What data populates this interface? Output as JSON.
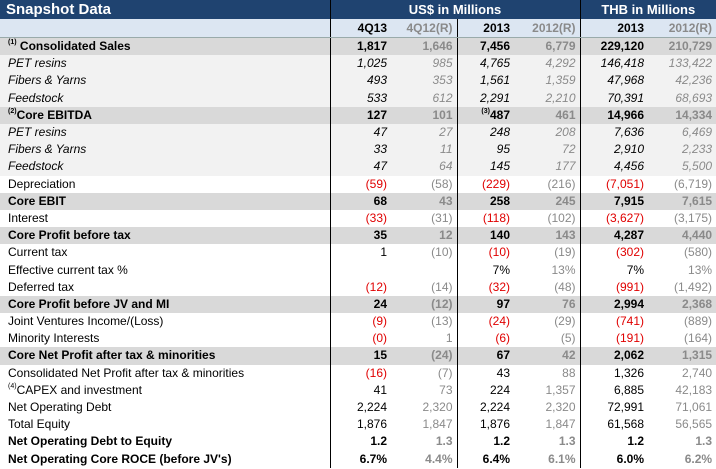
{
  "title": "Snapshot Data",
  "groups": {
    "usd": "US$ in Millions",
    "thb": "THB in Millions"
  },
  "columns": [
    "4Q13",
    "4Q12(R)",
    "2013",
    "2012(R)",
    "2013",
    "2012(R)"
  ],
  "rows": [
    {
      "sup": "(1)",
      "label": " Consolidated Sales",
      "style": "shade",
      "cells": [
        {
          "v": "1,817"
        },
        {
          "v": "1,646"
        },
        {
          "v": "7,456"
        },
        {
          "v": "6,779"
        },
        {
          "v": "229,120"
        },
        {
          "v": "210,729"
        }
      ]
    },
    {
      "label": "PET resins",
      "style": "sub",
      "cells": [
        {
          "v": "1,025"
        },
        {
          "v": "985"
        },
        {
          "v": "4,765"
        },
        {
          "v": "4,292"
        },
        {
          "v": "146,418"
        },
        {
          "v": "133,422"
        }
      ]
    },
    {
      "label": "Fibers & Yarns",
      "style": "sub",
      "cells": [
        {
          "v": "493"
        },
        {
          "v": "353"
        },
        {
          "v": "1,561"
        },
        {
          "v": "1,359"
        },
        {
          "v": "47,968"
        },
        {
          "v": "42,236"
        }
      ]
    },
    {
      "label": "Feedstock",
      "style": "sub",
      "cells": [
        {
          "v": "533"
        },
        {
          "v": "612"
        },
        {
          "v": "2,291"
        },
        {
          "v": "2,210"
        },
        {
          "v": "70,391"
        },
        {
          "v": "68,693"
        }
      ]
    },
    {
      "sup": "(2)",
      "label": "Core EBITDA",
      "style": "shade",
      "cells": [
        {
          "v": "127"
        },
        {
          "v": "101"
        },
        {
          "sup": "(3)",
          "v": "487"
        },
        {
          "v": "461"
        },
        {
          "v": "14,966"
        },
        {
          "v": "14,334"
        }
      ]
    },
    {
      "label": "PET resins",
      "style": "sub",
      "cells": [
        {
          "v": "47"
        },
        {
          "v": "27"
        },
        {
          "v": "248"
        },
        {
          "v": "208"
        },
        {
          "v": "7,636"
        },
        {
          "v": "6,469"
        }
      ]
    },
    {
      "label": "Fibers & Yarns",
      "style": "sub",
      "cells": [
        {
          "v": "33"
        },
        {
          "v": "11"
        },
        {
          "v": "95"
        },
        {
          "v": "72"
        },
        {
          "v": "2,910"
        },
        {
          "v": "2,233"
        }
      ]
    },
    {
      "label": "Feedstock",
      "style": "sub",
      "cells": [
        {
          "v": "47"
        },
        {
          "v": "64"
        },
        {
          "v": "145"
        },
        {
          "v": "177"
        },
        {
          "v": "4,456"
        },
        {
          "v": "5,500"
        }
      ]
    },
    {
      "label": "Depreciation",
      "style": "plain",
      "cells": [
        {
          "v": "(59)"
        },
        {
          "v": "(58)"
        },
        {
          "v": "(229)"
        },
        {
          "v": "(216)"
        },
        {
          "v": "(7,051)"
        },
        {
          "v": "(6,719)"
        }
      ]
    },
    {
      "label": "Core EBIT",
      "style": "shade",
      "cells": [
        {
          "v": "68"
        },
        {
          "v": "43"
        },
        {
          "v": "258"
        },
        {
          "v": "245"
        },
        {
          "v": "7,915"
        },
        {
          "v": "7,615"
        }
      ]
    },
    {
      "label": "Interest",
      "style": "plain",
      "cells": [
        {
          "v": "(33)"
        },
        {
          "v": "(31)"
        },
        {
          "v": "(118)"
        },
        {
          "v": "(102)"
        },
        {
          "v": "(3,627)"
        },
        {
          "v": "(3,175)"
        }
      ]
    },
    {
      "label": "Core Profit before tax",
      "style": "shade",
      "cells": [
        {
          "v": "35"
        },
        {
          "v": "12"
        },
        {
          "v": "140"
        },
        {
          "v": "143"
        },
        {
          "v": "4,287"
        },
        {
          "v": "4,440"
        }
      ]
    },
    {
      "label": "Current tax",
      "style": "plain",
      "cells": [
        {
          "v": "1"
        },
        {
          "v": "(10)"
        },
        {
          "v": "(10)"
        },
        {
          "v": "(19)"
        },
        {
          "v": "(302)"
        },
        {
          "v": "(580)"
        }
      ]
    },
    {
      "label": "Effective current tax %",
      "style": "plain",
      "cells": [
        {
          "v": ""
        },
        {
          "v": ""
        },
        {
          "v": "7%"
        },
        {
          "v": "13%"
        },
        {
          "v": "7%"
        },
        {
          "v": "13%"
        }
      ]
    },
    {
      "label": "Deferred tax",
      "style": "plain",
      "cells": [
        {
          "v": "(12)"
        },
        {
          "v": "(14)"
        },
        {
          "v": "(32)"
        },
        {
          "v": "(48)"
        },
        {
          "v": "(991)"
        },
        {
          "v": "(1,492)"
        }
      ]
    },
    {
      "label": "Core Profit before JV and MI",
      "style": "shade",
      "cells": [
        {
          "v": "24"
        },
        {
          "v": "(12)"
        },
        {
          "v": "97"
        },
        {
          "v": "76"
        },
        {
          "v": "2,994"
        },
        {
          "v": "2,368"
        }
      ]
    },
    {
      "label": "Joint Ventures Income/(Loss)",
      "style": "plain",
      "cells": [
        {
          "v": "(9)"
        },
        {
          "v": "(13)"
        },
        {
          "v": "(24)"
        },
        {
          "v": "(29)"
        },
        {
          "v": "(741)"
        },
        {
          "v": "(889)"
        }
      ]
    },
    {
      "label": "Minority Interests",
      "style": "plain",
      "cells": [
        {
          "v": "(0)"
        },
        {
          "v": "1"
        },
        {
          "v": "(6)"
        },
        {
          "v": "(5)"
        },
        {
          "v": "(191)"
        },
        {
          "v": "(164)"
        }
      ]
    },
    {
      "label": "Core Net Profit after tax & minorities",
      "style": "shade",
      "cells": [
        {
          "v": "15"
        },
        {
          "v": "(24)"
        },
        {
          "v": "67"
        },
        {
          "v": "42"
        },
        {
          "v": "2,062"
        },
        {
          "v": "1,315"
        }
      ]
    },
    {
      "label": "Consolidated Net Profit after tax & minorities",
      "style": "plain",
      "cells": [
        {
          "v": "(16)"
        },
        {
          "v": "(7)"
        },
        {
          "v": "43"
        },
        {
          "v": "88"
        },
        {
          "v": "1,326"
        },
        {
          "v": "2,740"
        }
      ]
    },
    {
      "sup": "(4)",
      "label": "CAPEX and investment",
      "style": "plain",
      "cells": [
        {
          "v": "41"
        },
        {
          "v": "73"
        },
        {
          "v": "224"
        },
        {
          "v": "1,357"
        },
        {
          "v": "6,885"
        },
        {
          "v": "42,183"
        }
      ]
    },
    {
      "label": "Net Operating Debt",
      "style": "plain",
      "cells": [
        {
          "v": "2,224"
        },
        {
          "v": "2,320"
        },
        {
          "v": "2,224"
        },
        {
          "v": "2,320"
        },
        {
          "v": "72,991"
        },
        {
          "v": "71,061"
        }
      ]
    },
    {
      "label": "Total Equity",
      "style": "plain",
      "cells": [
        {
          "v": "1,876"
        },
        {
          "v": "1,847"
        },
        {
          "v": "1,876"
        },
        {
          "v": "1,847"
        },
        {
          "v": "61,568"
        },
        {
          "v": "56,565"
        }
      ]
    },
    {
      "label": "Net Operating Debt to Equity",
      "style": "bold",
      "cells": [
        {
          "v": "1.2"
        },
        {
          "v": "1.3"
        },
        {
          "v": "1.2"
        },
        {
          "v": "1.3"
        },
        {
          "v": "1.2"
        },
        {
          "v": "1.3"
        }
      ]
    },
    {
      "label": "Net Operating Core ROCE (before JV's)",
      "style": "bold",
      "cells": [
        {
          "v": "6.7%"
        },
        {
          "v": "4.4%"
        },
        {
          "v": "6.4%"
        },
        {
          "v": "6.1%"
        },
        {
          "v": "6.0%"
        },
        {
          "v": "6.2%"
        }
      ]
    }
  ],
  "colors": {
    "header": "#1f4370",
    "subheader": "#dce6f2",
    "shade": "#d9d9d9",
    "negative": "#e00000",
    "prior": "#8a8a8a"
  }
}
